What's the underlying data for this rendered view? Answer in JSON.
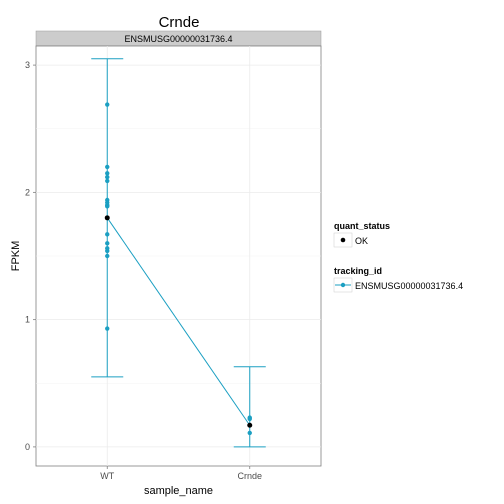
{
  "chart_data": {
    "type": "line",
    "title": "Crnde",
    "facet_label": "ENSMUSG00000031736.4",
    "xlabel": "sample_name",
    "ylabel": "FPKM",
    "categories": [
      "WT",
      "Crnde"
    ],
    "ylim": [
      -0.15,
      3.15
    ],
    "yticks": [
      0,
      1,
      2,
      3
    ],
    "grid": true,
    "series": [
      {
        "name": "ENSMUSG00000031736.4",
        "color": "#1b9fc2",
        "values": [
          1.8,
          0.17
        ],
        "error_low": [
          0.55,
          0.0
        ],
        "error_high": [
          3.05,
          0.63
        ],
        "replicates": [
          [
            2.69,
            2.2,
            2.15,
            2.12,
            2.09,
            1.94,
            1.92,
            1.9,
            1.89,
            1.67,
            1.6,
            1.56,
            1.54,
            1.5,
            0.93
          ],
          [
            0.23,
            0.22,
            0.11
          ]
        ]
      }
    ],
    "point_color": "#000000",
    "legend": {
      "position": "right",
      "groups": [
        {
          "title": "quant_status",
          "items": [
            "OK"
          ]
        },
        {
          "title": "tracking_id",
          "items": [
            "ENSMUSG00000031736.4"
          ]
        }
      ]
    }
  }
}
